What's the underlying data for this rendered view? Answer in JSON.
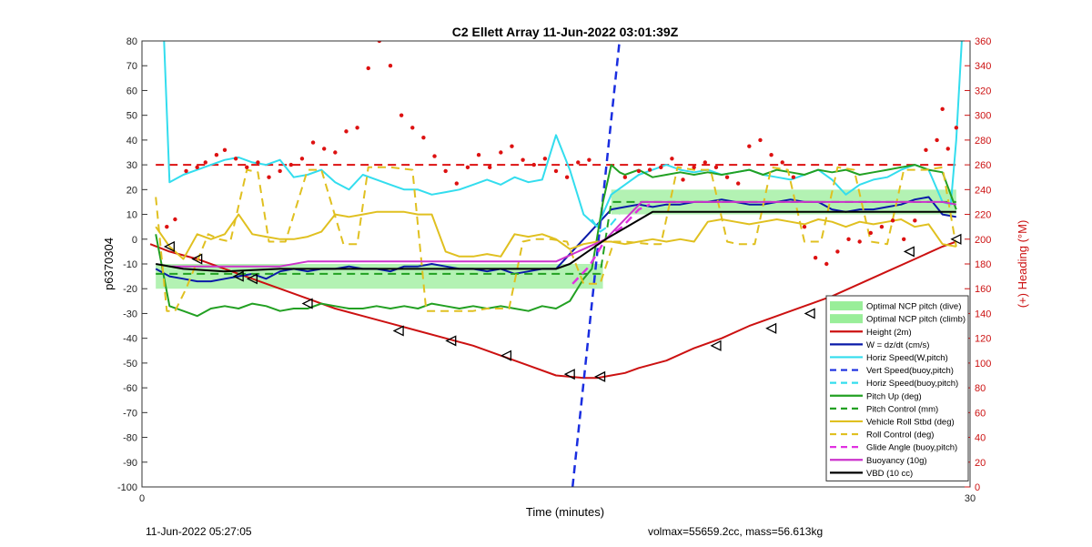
{
  "footer": {
    "left": "11-Jun-2022 05:27:05",
    "right": "volmax=55659.2cc, mass=56.613kg"
  },
  "chart_data": {
    "type": "line",
    "title": "C2 Ellett Array 11-Jun-2022 03:01:39Z",
    "xlabel": "Time (minutes)",
    "ylabel": "p6370304",
    "ylabel_right": "(+) Heading (°M)",
    "xlim": [
      0,
      30
    ],
    "ylim": [
      -100,
      80
    ],
    "ylim_right": [
      0,
      360
    ],
    "xticks": [
      0,
      30
    ],
    "yticks": [
      -100,
      -90,
      -80,
      -70,
      -60,
      -50,
      -40,
      -30,
      -20,
      -10,
      0,
      10,
      20,
      30,
      40,
      50,
      60,
      70,
      80
    ],
    "yticks_right": [
      0,
      20,
      40,
      60,
      80,
      100,
      120,
      140,
      160,
      180,
      200,
      220,
      240,
      260,
      280,
      300,
      320,
      340,
      360
    ],
    "grid": false,
    "legend_position": "bottom-right",
    "colors": {
      "band": "#99ee99",
      "height": "#cc1111",
      "w": "#0a1aa8",
      "horiz": "#33ddee",
      "vert": "#1a2ee0",
      "pitch": "#22a022",
      "roll": "#e0c020",
      "glide": "#e030e0",
      "buoy": "#cc33cc",
      "vbd": "#000000",
      "heading": "#dd1111"
    },
    "bands": [
      {
        "name": "Optimal NCP pitch (dive)",
        "x": [
          0.5,
          16.7
        ],
        "y": [
          -20,
          -10
        ]
      },
      {
        "name": "Optimal NCP pitch (climb)",
        "x": [
          17.0,
          29.5
        ],
        "y": [
          10,
          20
        ]
      }
    ],
    "series": [
      {
        "name": "Height (2m)",
        "key": "height",
        "style": "solid",
        "width": 2,
        "x": [
          0.3,
          1,
          2,
          3,
          4,
          5,
          6,
          7,
          8,
          9,
          10,
          11,
          12,
          13,
          14,
          15,
          15.5,
          16,
          16.5,
          17,
          17.5,
          18,
          19,
          20,
          21,
          22,
          23,
          24,
          25,
          26,
          27,
          28,
          29,
          29.5
        ],
        "y": [
          -2,
          -5,
          -8,
          -12,
          -16,
          -20,
          -24,
          -28,
          -31,
          -34,
          -37,
          -40,
          -43,
          -47,
          -51,
          -55,
          -55.5,
          -56,
          -56,
          -55,
          -54,
          -52,
          -49,
          -44,
          -40,
          -35,
          -31,
          -27,
          -23,
          -18,
          -13,
          -8,
          -3,
          -1
        ]
      },
      {
        "name": "W = dz/dt (cm/s)",
        "key": "w",
        "style": "solid",
        "width": 2,
        "x": [
          0.5,
          1,
          1.5,
          2,
          2.5,
          3,
          3.5,
          4,
          4.5,
          5,
          5.5,
          6,
          6.5,
          7,
          7.5,
          8,
          8.5,
          9,
          9.5,
          10,
          10.5,
          11,
          11.5,
          12,
          12.5,
          13,
          13.5,
          14,
          14.5,
          15,
          15.5,
          16,
          16.5,
          17,
          17.5,
          18,
          18.5,
          19,
          19.5,
          20,
          20.5,
          21,
          21.5,
          22,
          22.5,
          23,
          23.5,
          24,
          24.5,
          25,
          25.5,
          26,
          26.5,
          27,
          27.5,
          28,
          28.5,
          29,
          29.5
        ],
        "y": [
          -12,
          -15,
          -16,
          -17,
          -17,
          -16,
          -15,
          -14,
          -16,
          -13,
          -12,
          -13,
          -12,
          -12,
          -11,
          -12,
          -12,
          -13,
          -11,
          -11,
          -10,
          -11,
          -12,
          -12,
          -13,
          -12,
          -14,
          -13,
          -12,
          -12,
          -6,
          0,
          6,
          12,
          13,
          14,
          13,
          14,
          14,
          15,
          15,
          16,
          15,
          14,
          14,
          15,
          16,
          15,
          15,
          12,
          11,
          12,
          12,
          13,
          14,
          16,
          17,
          10,
          9
        ]
      },
      {
        "name": "Horiz Speed(W,pitch)",
        "key": "horiz",
        "style": "solid",
        "width": 2,
        "x": [
          0.8,
          1,
          1.5,
          2,
          2.5,
          3,
          3.5,
          4,
          4.5,
          5,
          5.5,
          6,
          6.5,
          7,
          7.5,
          8,
          8.5,
          9,
          9.5,
          10,
          10.5,
          11,
          11.5,
          12,
          12.5,
          13,
          13.5,
          14,
          14.5,
          15,
          15.5,
          16,
          16.5,
          17,
          17.5,
          18,
          18.5,
          19,
          19.5,
          20,
          20.5,
          21,
          21.5,
          22,
          22.5,
          23,
          23.5,
          24,
          24.5,
          25,
          25.5,
          26,
          26.5,
          27,
          27.5,
          28,
          28.5,
          29,
          29.3,
          29.5,
          29.7
        ],
        "y": [
          80,
          23,
          26,
          28,
          30,
          32,
          33,
          31,
          30,
          32,
          25,
          26,
          28,
          23,
          20,
          26,
          24,
          22,
          20,
          20,
          18,
          19,
          20,
          22,
          24,
          22,
          25,
          23,
          24,
          42,
          28,
          10,
          5,
          18,
          22,
          26,
          28,
          30,
          28,
          27,
          28,
          26,
          27,
          28,
          26,
          25,
          24,
          26,
          28,
          24,
          18,
          22,
          24,
          25,
          28,
          30,
          28,
          15,
          14,
          40,
          80
        ]
      },
      {
        "name": "Vert Speed(buoy,pitch)",
        "key": "vert",
        "style": "dashed",
        "width": 2.5,
        "x": [
          15.6,
          17.3
        ],
        "y": [
          -100,
          80
        ]
      },
      {
        "name": "Horiz Speed(buoy,pitch)",
        "key": "horiz",
        "style": "dashed",
        "width": 2,
        "x": [
          16.3,
          16.6,
          17,
          17.3
        ],
        "y": [
          8,
          3,
          6,
          10
        ]
      },
      {
        "name": "Pitch Up (deg)",
        "key": "pitch",
        "style": "solid",
        "width": 2,
        "x": [
          0.5,
          1,
          1.5,
          2,
          2.5,
          3,
          3.5,
          4,
          4.5,
          5,
          5.5,
          6,
          6.5,
          7,
          7.5,
          8,
          8.5,
          9,
          9.5,
          10,
          10.5,
          11,
          11.5,
          12,
          12.5,
          13,
          13.5,
          14,
          14.5,
          15,
          15.5,
          16,
          16.3,
          16.7,
          17,
          17.3,
          17.5,
          18,
          18.5,
          19,
          19.5,
          20,
          20.5,
          21,
          21.5,
          22,
          22.5,
          23,
          23.5,
          24,
          24.5,
          25,
          25.5,
          26,
          26.5,
          27,
          27.5,
          28,
          28.5,
          29,
          29.5
        ],
        "y": [
          2,
          -27,
          -29,
          -31,
          -28,
          -27,
          -28,
          -26,
          -27,
          -29,
          -28,
          -28,
          -26,
          -27,
          -28,
          -28,
          -27,
          -28,
          -27,
          -28,
          -26,
          -27,
          -28,
          -27,
          -28,
          -27,
          -28,
          -29,
          -27,
          -28,
          -25,
          -16,
          -12,
          15,
          30,
          27,
          26,
          28,
          25,
          26,
          27,
          26,
          27,
          26,
          27,
          28,
          26,
          28,
          27,
          26,
          28,
          27,
          28,
          26,
          27,
          28,
          29,
          30,
          28,
          27,
          12
        ]
      },
      {
        "name": "Pitch Control (mm)",
        "key": "pitch",
        "style": "dashed",
        "width": 2,
        "x": [
          0.5,
          16.6,
          17,
          29.5
        ],
        "y": [
          -14,
          -14,
          15,
          15
        ]
      },
      {
        "name": "Vehicle Roll Stbd (deg)",
        "key": "roll",
        "style": "solid",
        "width": 2,
        "x": [
          0.5,
          1,
          1.5,
          2,
          2.5,
          3,
          3.5,
          4,
          4.5,
          5,
          5.5,
          6,
          6.5,
          7,
          7.5,
          8,
          8.5,
          9,
          9.5,
          10,
          10.5,
          11,
          11.5,
          12,
          12.5,
          13,
          13.5,
          14,
          14.5,
          15,
          15.5,
          16,
          16.5,
          17,
          17.5,
          18,
          18.5,
          19,
          19.5,
          20,
          20.5,
          21,
          21.5,
          22,
          22.5,
          23,
          23.5,
          24,
          24.5,
          25,
          25.5,
          26,
          26.5,
          27,
          27.5,
          28,
          28.5,
          29,
          29.5
        ],
        "y": [
          5,
          -3,
          -8,
          2,
          0,
          2,
          10,
          2,
          1,
          0,
          0,
          1,
          3,
          10,
          9,
          10,
          11,
          11,
          11,
          10,
          10,
          -5,
          -7,
          -7,
          -6,
          -7,
          2,
          1,
          2,
          0,
          -4,
          -2,
          -1,
          -1,
          -2,
          -1,
          0,
          -1,
          0,
          -1,
          7,
          8,
          7,
          6,
          7,
          8,
          7,
          6,
          8,
          7,
          5,
          7,
          6,
          7,
          8,
          5,
          6,
          -2,
          -3
        ]
      },
      {
        "name": "Roll Control (deg)",
        "key": "roll",
        "style": "dashed",
        "width": 2,
        "x": [
          0.5,
          0.9,
          1.2,
          1.6,
          2.4,
          2.8,
          3.2,
          3.8,
          4.2,
          4.6,
          5.2,
          6.0,
          6.5,
          7.3,
          7.8,
          8.2,
          9.0,
          9.8,
          10.3,
          10.7,
          11.5,
          12.0,
          12.5,
          13.3,
          13.8,
          14.2,
          14.8,
          15.4,
          16.0,
          16.6,
          17.1,
          17.5,
          18.4,
          18.8,
          19.4,
          20.0,
          20.6,
          21.2,
          21.6,
          22.2,
          22.8,
          23.4,
          24.0,
          24.6,
          25.2,
          25.8,
          26.4,
          27.0,
          27.6,
          28.4,
          29.0,
          29.5
        ],
        "y": [
          17,
          -29,
          -29,
          -20,
          2,
          0,
          -1,
          28,
          27,
          -1,
          -1,
          28,
          28,
          -2,
          -2,
          29,
          29,
          28,
          -29,
          -29,
          -29,
          -29,
          -28,
          -28,
          -1,
          0,
          0,
          -1,
          -18,
          -18,
          -1,
          -1,
          -2,
          -2,
          29,
          28,
          28,
          -1,
          -2,
          -2,
          29,
          28,
          -1,
          -1,
          29,
          28,
          -1,
          -2,
          28,
          28,
          29,
          -3
        ]
      },
      {
        "name": "Glide Angle (buoy,pitch)",
        "key": "glide",
        "style": "dashed",
        "width": 2.5,
        "x": [
          15.6,
          16.2,
          16.8,
          17.4,
          18.0,
          18.4
        ],
        "y": [
          -18,
          -11,
          0,
          5,
          12,
          14
        ]
      },
      {
        "name": "Buoyancy (10g)",
        "key": "buoy",
        "style": "solid",
        "width": 2,
        "x": [
          1,
          5,
          6,
          15,
          16.8,
          18.1,
          29,
          29.5
        ],
        "y": [
          -11,
          -11,
          -9,
          -9,
          0,
          15,
          15,
          14
        ]
      },
      {
        "name": "VBD (10 cc)",
        "key": "vbd",
        "style": "solid",
        "width": 2,
        "x": [
          0.5,
          1.5,
          3,
          5,
          8,
          15,
          15.5,
          16.8,
          18.5,
          29.5
        ],
        "y": [
          -10,
          -12,
          -13,
          -12,
          -12,
          -12,
          -10,
          0,
          11,
          11
        ]
      }
    ],
    "heading_points": {
      "name": "Heading",
      "x": [
        0.9,
        1.2,
        1.6,
        2.0,
        2.3,
        2.7,
        3.0,
        3.4,
        3.8,
        4.2,
        4.6,
        5.0,
        5.4,
        5.8,
        6.2,
        6.6,
        7.0,
        7.4,
        7.8,
        8.2,
        8.6,
        9.0,
        9.4,
        9.8,
        10.2,
        10.6,
        11.0,
        11.4,
        11.8,
        12.2,
        12.6,
        13.0,
        13.4,
        13.8,
        14.2,
        14.6,
        15.0,
        15.4,
        15.8,
        16.2,
        17.5,
        18.0,
        18.4,
        18.8,
        19.2,
        19.6,
        20.0,
        20.4,
        20.8,
        21.2,
        21.6,
        22.0,
        22.4,
        22.8,
        23.2,
        23.6,
        24.0,
        24.4,
        24.8,
        25.2,
        25.6,
        26.0,
        26.4,
        26.8,
        27.2,
        27.6,
        28.0,
        28.4,
        28.8,
        29.0,
        29.2,
        29.5
      ],
      "y": [
        210,
        216,
        255,
        258,
        262,
        268,
        272,
        265,
        258,
        262,
        250,
        255,
        260,
        265,
        278,
        273,
        270,
        287,
        290,
        338,
        360,
        340,
        300,
        290,
        282,
        267,
        255,
        245,
        258,
        268,
        258,
        270,
        275,
        264,
        260,
        265,
        255,
        250,
        262,
        264,
        250,
        255,
        256,
        258,
        265,
        248,
        258,
        262,
        258,
        250,
        245,
        275,
        280,
        268,
        262,
        250,
        210,
        185,
        180,
        190,
        200,
        198,
        205,
        210,
        215,
        200,
        215,
        272,
        280,
        305,
        273,
        290
      ]
    },
    "markers": {
      "x": [
        1,
        2,
        3.5,
        4,
        6,
        9.3,
        11.2,
        13.2,
        15.5,
        16.6,
        20.8,
        22.8,
        24.2,
        27.8,
        29.5
      ],
      "y": [
        -3,
        -8,
        -15,
        -16,
        -26,
        -37,
        -41,
        -47,
        -54.5,
        -55.5,
        -43,
        -36,
        -30,
        -5,
        0
      ]
    }
  }
}
